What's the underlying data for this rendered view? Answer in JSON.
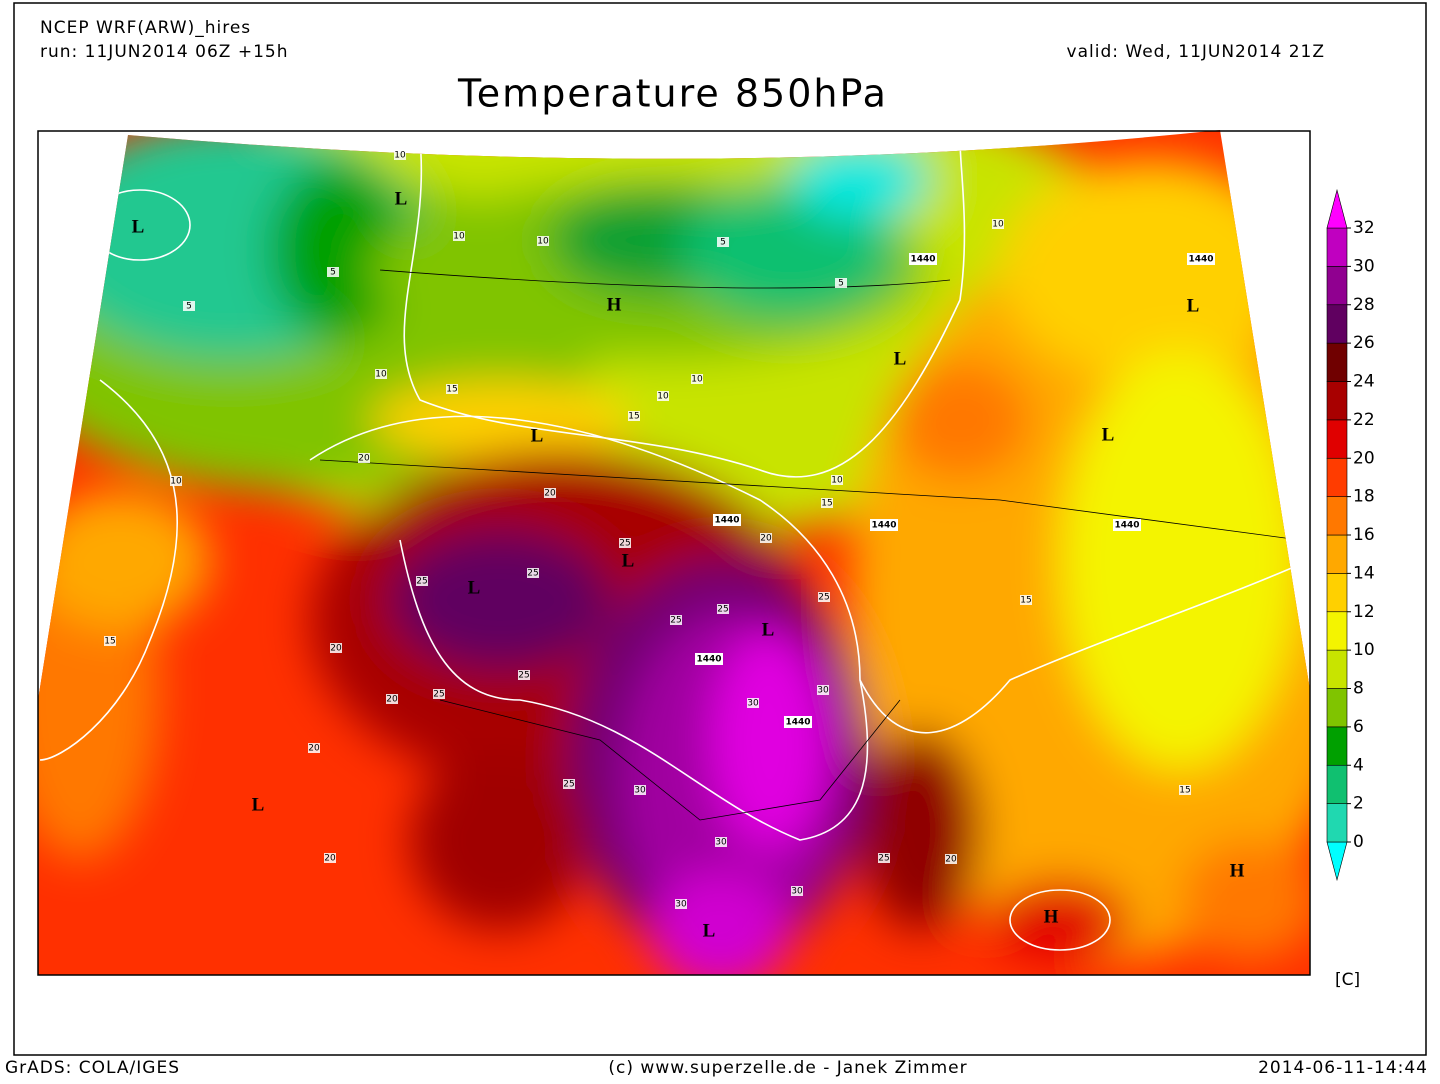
{
  "header": {
    "model": "NCEP WRF(ARW)_hires",
    "run": "run: 11JUN2014 06Z +15h",
    "valid": "valid: Wed, 11JUN2014 21Z",
    "title": "Temperature 850hPa"
  },
  "colorbar": {
    "ticks": [
      0,
      2,
      4,
      6,
      8,
      10,
      12,
      14,
      16,
      18,
      20,
      22,
      24,
      26,
      28,
      30,
      32
    ],
    "colors": [
      "#00ffff",
      "#20d8b0",
      "#10c070",
      "#00a000",
      "#80c400",
      "#c8e400",
      "#f4f400",
      "#ffd000",
      "#ffa800",
      "#ff7800",
      "#ff3c00",
      "#e00000",
      "#a80000",
      "#700000",
      "#600060",
      "#900090",
      "#c000c0",
      "#ff00ff"
    ],
    "unit": "[C]"
  },
  "map": {
    "systems": [
      "L",
      "L",
      "H",
      "L",
      "L",
      "L",
      "L",
      "L",
      "H",
      "L",
      "L",
      "L",
      "H",
      "L"
    ],
    "contour_labels": [
      "10",
      "10",
      "10",
      "5",
      "5",
      "5",
      "5",
      "10",
      "15",
      "10",
      "10",
      "15",
      "20",
      "20",
      "10",
      "10",
      "15",
      "15",
      "20",
      "20",
      "20",
      "20",
      "25",
      "25",
      "25",
      "25",
      "25",
      "30",
      "30",
      "30",
      "30",
      "25",
      "20",
      "15",
      "15",
      "25",
      "30",
      "30",
      "20",
      "25",
      "25",
      "25",
      "10"
    ],
    "height_labels": [
      "1440",
      "1440",
      "1440",
      "1440",
      "1440",
      "1440",
      "1440"
    ]
  },
  "footer": {
    "software": "GrADS: COLA/IGES",
    "credit": "(c) www.superzelle.de - Janek Zimmer",
    "timestamp": "2014-06-11-14:44"
  }
}
